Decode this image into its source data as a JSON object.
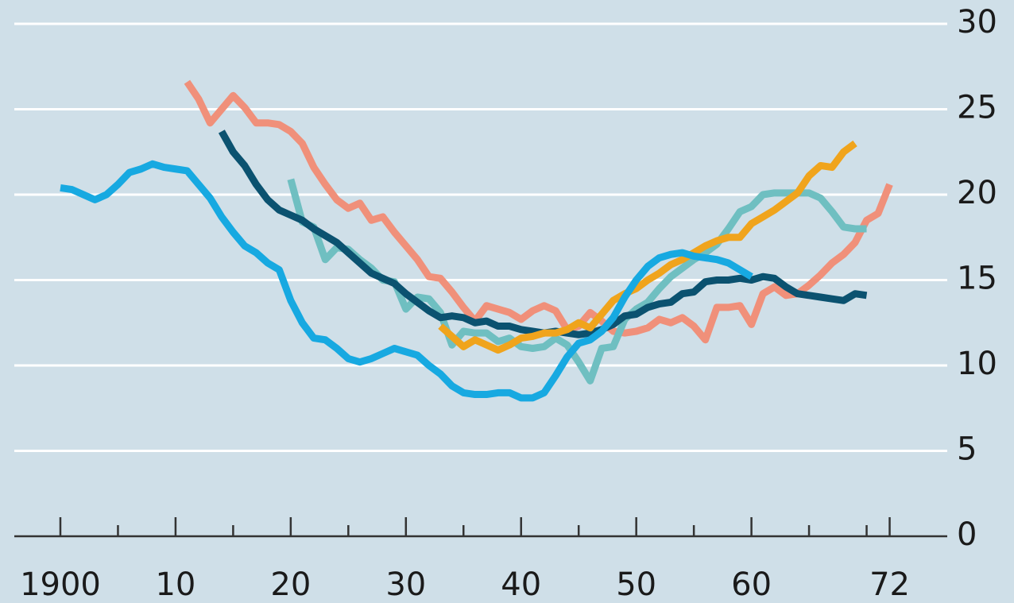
{
  "chart_data": {
    "type": "line",
    "x": [
      1900,
      1901,
      1902,
      1903,
      1904,
      1905,
      1906,
      1907,
      1908,
      1909,
      1910,
      1911,
      1912,
      1913,
      1914,
      1915,
      1916,
      1917,
      1918,
      1919,
      1920,
      1921,
      1922,
      1923,
      1924,
      1925,
      1926,
      1927,
      1928,
      1929,
      1930,
      1931,
      1932,
      1933,
      1934,
      1935,
      1936,
      1937,
      1938,
      1939,
      1940,
      1941,
      1942,
      1943,
      1944,
      1945,
      1946,
      1947,
      1948,
      1949,
      1950,
      1951,
      1952,
      1953,
      1954,
      1955,
      1956,
      1957,
      1958,
      1959,
      1960,
      1961,
      1962,
      1963,
      1964,
      1965,
      1966,
      1967,
      1968,
      1969,
      1970,
      1971,
      1972
    ],
    "series": [
      {
        "color": "#f0907a",
        "values": [
          null,
          null,
          null,
          null,
          null,
          null,
          null,
          null,
          null,
          null,
          null,
          26.6,
          25.6,
          24.2,
          25.0,
          25.8,
          25.1,
          24.2,
          24.2,
          24.1,
          23.7,
          23.0,
          21.6,
          20.6,
          19.7,
          19.2,
          19.5,
          18.5,
          18.7,
          17.8,
          17.0,
          16.2,
          15.2,
          15.1,
          14.3,
          13.4,
          12.6,
          13.5,
          13.3,
          13.1,
          12.7,
          13.2,
          13.5,
          13.2,
          12.1,
          12.3,
          13.1,
          12.6,
          12.0,
          11.9,
          12.0,
          12.2,
          12.7,
          12.5,
          12.8,
          12.3,
          11.5,
          13.4,
          13.4,
          13.5,
          12.4,
          14.2,
          14.6,
          14.1,
          14.2,
          14.7,
          15.3,
          16.0,
          16.5,
          17.2,
          18.5,
          18.9,
          20.6
        ]
      },
      {
        "color": "#6fbfc1",
        "values": [
          null,
          null,
          null,
          null,
          null,
          null,
          null,
          null,
          null,
          null,
          null,
          null,
          null,
          null,
          null,
          null,
          null,
          null,
          null,
          null,
          20.9,
          18.4,
          18.1,
          16.2,
          16.9,
          16.8,
          16.2,
          15.7,
          15.0,
          14.9,
          13.3,
          14.0,
          13.9,
          13.1,
          11.2,
          12.0,
          11.9,
          11.9,
          11.4,
          11.6,
          11.1,
          11.0,
          11.1,
          11.6,
          11.2,
          10.2,
          9.1,
          11.0,
          11.1,
          12.7,
          13.3,
          13.7,
          14.5,
          15.2,
          15.7,
          16.2,
          16.6,
          17.1,
          18.0,
          19.0,
          19.3,
          20.0,
          20.1,
          20.1,
          20.1,
          20.1,
          19.8,
          19.0,
          18.1,
          18.0,
          18.0,
          null,
          null
        ]
      },
      {
        "color": "#0b5270",
        "values": [
          null,
          null,
          null,
          null,
          null,
          null,
          null,
          null,
          null,
          null,
          null,
          null,
          null,
          null,
          23.7,
          22.5,
          21.7,
          20.6,
          19.7,
          19.1,
          18.8,
          18.5,
          18.0,
          17.6,
          17.2,
          16.6,
          16.0,
          15.4,
          15.1,
          14.8,
          14.2,
          13.7,
          13.2,
          12.8,
          12.9,
          12.8,
          12.5,
          12.6,
          12.3,
          12.3,
          12.1,
          12.0,
          11.9,
          12.0,
          11.9,
          11.8,
          11.9,
          12.1,
          12.4,
          12.9,
          13.0,
          13.4,
          13.6,
          13.7,
          14.2,
          14.3,
          14.9,
          15.0,
          15.0,
          15.1,
          15.0,
          15.2,
          15.1,
          14.6,
          14.2,
          14.1,
          14.0,
          13.9,
          13.8,
          14.2,
          14.1,
          null,
          null
        ]
      },
      {
        "color": "#f0a41c",
        "values": [
          null,
          null,
          null,
          null,
          null,
          null,
          null,
          null,
          null,
          null,
          null,
          null,
          null,
          null,
          null,
          null,
          null,
          null,
          null,
          null,
          null,
          null,
          null,
          null,
          null,
          null,
          null,
          null,
          null,
          null,
          null,
          null,
          null,
          12.3,
          11.7,
          11.1,
          11.5,
          11.2,
          10.9,
          11.2,
          11.6,
          11.7,
          11.9,
          11.9,
          12.1,
          12.5,
          12.2,
          13.0,
          13.8,
          14.2,
          14.5,
          15.0,
          15.4,
          15.9,
          16.2,
          16.6,
          17.0,
          17.3,
          17.5,
          17.5,
          18.3,
          18.7,
          19.1,
          19.6,
          20.1,
          21.1,
          21.7,
          21.6,
          22.5,
          23.0,
          null,
          null,
          null
        ]
      },
      {
        "color": "#17a9e1",
        "values": [
          20.4,
          20.3,
          20.0,
          19.7,
          20.0,
          20.6,
          21.3,
          21.5,
          21.8,
          21.6,
          21.5,
          21.4,
          20.6,
          19.8,
          18.7,
          17.8,
          17.0,
          16.6,
          16.0,
          15.6,
          13.8,
          12.5,
          11.6,
          11.5,
          11.0,
          10.4,
          10.2,
          10.4,
          10.7,
          11.0,
          10.8,
          10.6,
          10.0,
          9.5,
          8.8,
          8.4,
          8.3,
          8.3,
          8.4,
          8.4,
          8.1,
          8.1,
          8.4,
          9.4,
          10.5,
          11.3,
          11.5,
          12.0,
          12.8,
          14.0,
          15.0,
          15.8,
          16.3,
          16.5,
          16.6,
          16.4,
          16.3,
          16.2,
          16.0,
          15.6,
          15.2,
          null,
          null,
          null,
          null,
          null,
          null,
          null,
          null,
          null,
          null,
          null,
          null
        ]
      }
    ],
    "xlim": [
      1896,
      1977
    ],
    "xticks": [
      {
        "value": 1900,
        "label": "1900"
      },
      {
        "value": 1910,
        "label": "10"
      },
      {
        "value": 1920,
        "label": "20"
      },
      {
        "value": 1930,
        "label": "30"
      },
      {
        "value": 1940,
        "label": "40"
      },
      {
        "value": 1950,
        "label": "50"
      },
      {
        "value": 1960,
        "label": "60"
      },
      {
        "value": 1972,
        "label": "72"
      }
    ],
    "xminorticks": [
      1905,
      1915,
      1925,
      1935,
      1945,
      1955,
      1965,
      1970
    ],
    "ylim": [
      0,
      30
    ],
    "yticks": [
      0,
      5,
      10,
      15,
      20,
      25,
      30
    ],
    "grid": true,
    "yaxis_side": "right"
  }
}
